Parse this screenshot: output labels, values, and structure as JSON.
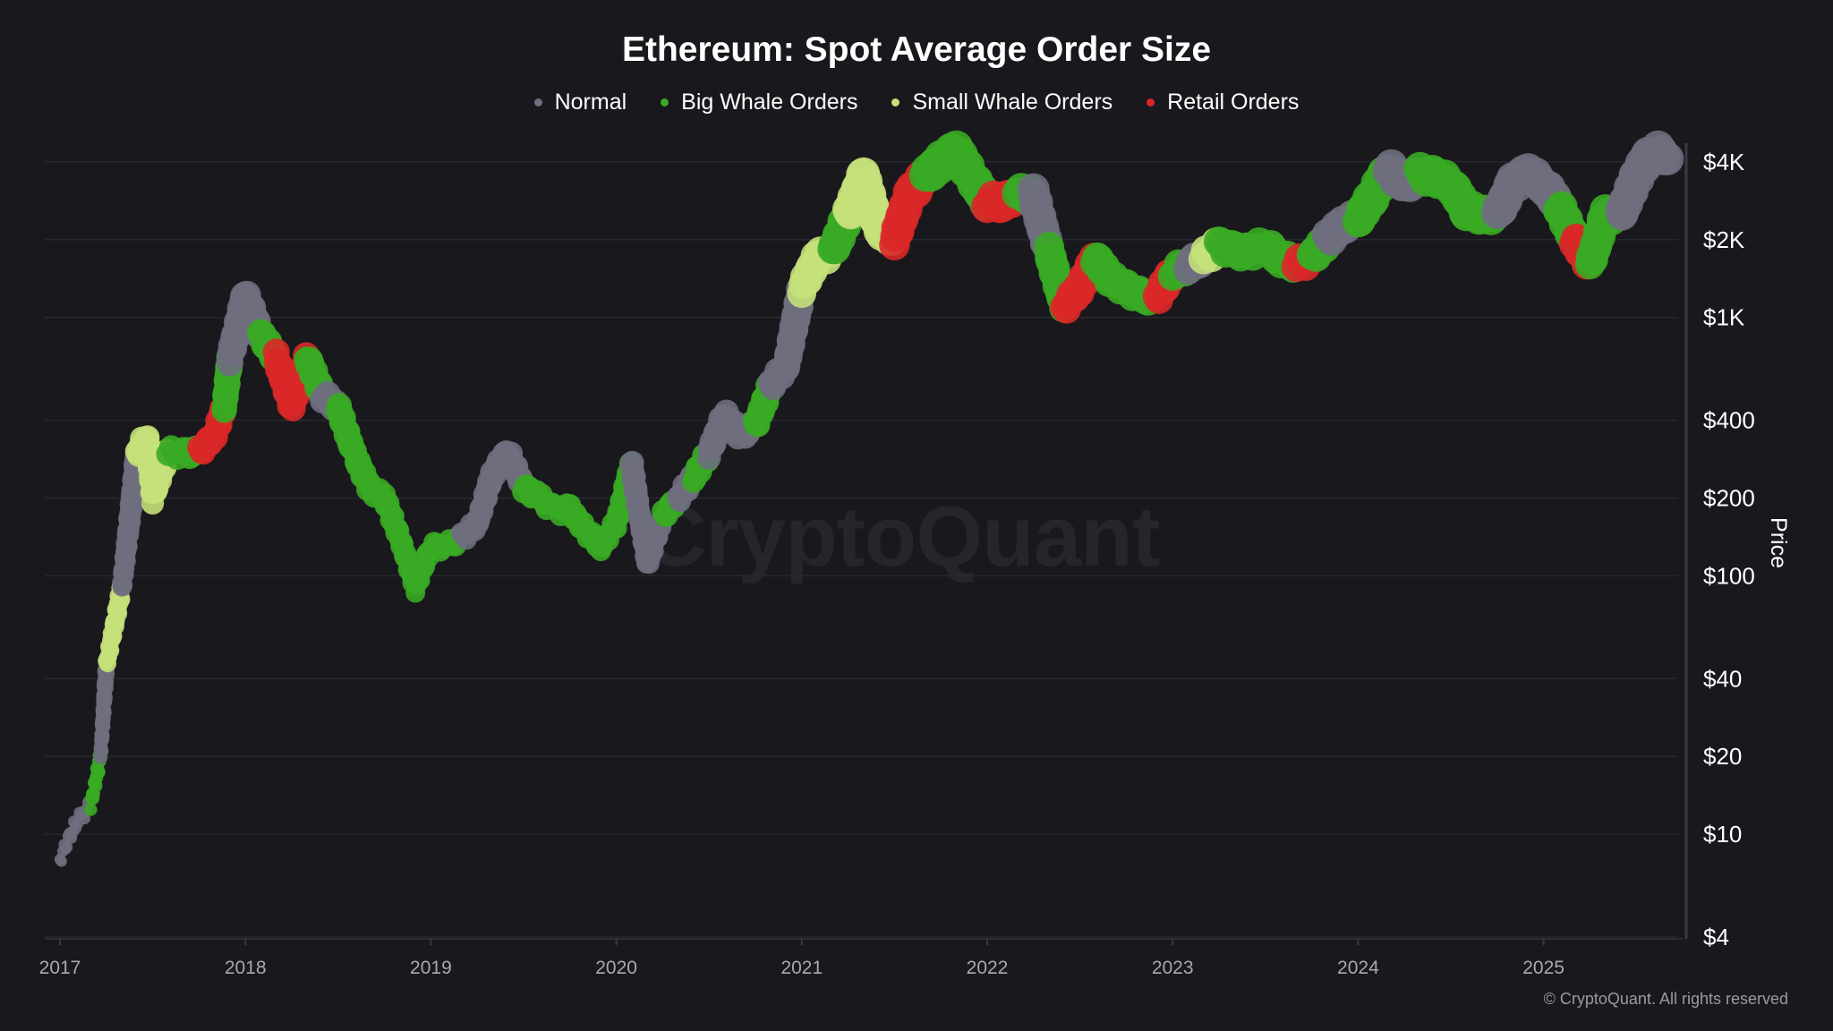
{
  "chart_data": {
    "type": "scatter",
    "title": "Ethereum: Spot Average Order Size",
    "ylabel": "Price",
    "yscale": "log",
    "ylim": [
      4,
      5000
    ],
    "y_ticks": [
      {
        "value": 4,
        "label": "$4"
      },
      {
        "value": 10,
        "label": "$10"
      },
      {
        "value": 20,
        "label": "$20"
      },
      {
        "value": 40,
        "label": "$40"
      },
      {
        "value": 100,
        "label": "$100"
      },
      {
        "value": 200,
        "label": "$200"
      },
      {
        "value": 400,
        "label": "$400"
      },
      {
        "value": 1000,
        "label": "$1K"
      },
      {
        "value": 2000,
        "label": "$2K"
      },
      {
        "value": 4000,
        "label": "$4K"
      }
    ],
    "x_ticks": [
      "2017",
      "2018",
      "2019",
      "2020",
      "2021",
      "2022",
      "2023",
      "2024",
      "2025"
    ],
    "grid": true,
    "legend_position": "top-center",
    "series": [
      {
        "key": "normal",
        "name": "Normal",
        "color": "#6e6e80"
      },
      {
        "key": "big",
        "name": "Big Whale Orders",
        "color": "#3aaa23"
      },
      {
        "key": "small",
        "name": "Small Whale Orders",
        "color": "#c5e07a"
      },
      {
        "key": "retail",
        "name": "Retail Orders",
        "color": "#d92828"
      }
    ],
    "points": [
      [
        "2017-01",
        8,
        "normal"
      ],
      [
        "2017-02",
        11,
        "normal"
      ],
      [
        "2017-03",
        13,
        "big"
      ],
      [
        "2017-03-20",
        20,
        "normal"
      ],
      [
        "2017-04",
        45,
        "small"
      ],
      [
        "2017-05",
        90,
        "normal"
      ],
      [
        "2017-06",
        300,
        "small"
      ],
      [
        "2017-06-20",
        350,
        "small"
      ],
      [
        "2017-07",
        200,
        "small"
      ],
      [
        "2017-08",
        300,
        "big"
      ],
      [
        "2017-09",
        300,
        "big"
      ],
      [
        "2017-10",
        300,
        "retail"
      ],
      [
        "2017-11",
        350,
        "retail"
      ],
      [
        "2017-11-20",
        450,
        "big"
      ],
      [
        "2017-12",
        700,
        "normal"
      ],
      [
        "2018-01",
        1200,
        "normal"
      ],
      [
        "2018-02",
        850,
        "big"
      ],
      [
        "2018-03",
        700,
        "retail"
      ],
      [
        "2018-04",
        450,
        "retail"
      ],
      [
        "2018-05",
        700,
        "big"
      ],
      [
        "2018-06",
        500,
        "normal"
      ],
      [
        "2018-07",
        450,
        "big"
      ],
      [
        "2018-08",
        300,
        "big"
      ],
      [
        "2018-09",
        220,
        "big"
      ],
      [
        "2018-10",
        200,
        "big"
      ],
      [
        "2018-11",
        140,
        "big"
      ],
      [
        "2018-12",
        90,
        "big"
      ],
      [
        "2019-01",
        130,
        "big"
      ],
      [
        "2019-02",
        130,
        "big"
      ],
      [
        "2019-03",
        140,
        "normal"
      ],
      [
        "2019-04",
        160,
        "normal"
      ],
      [
        "2019-05",
        250,
        "normal"
      ],
      [
        "2019-06",
        300,
        "normal"
      ],
      [
        "2019-07",
        220,
        "big"
      ],
      [
        "2019-08",
        200,
        "big"
      ],
      [
        "2019-09",
        180,
        "big"
      ],
      [
        "2019-10",
        180,
        "big"
      ],
      [
        "2019-11",
        150,
        "big"
      ],
      [
        "2019-12",
        130,
        "big"
      ],
      [
        "2020-01",
        160,
        "big"
      ],
      [
        "2020-02",
        270,
        "normal"
      ],
      [
        "2020-03",
        110,
        "normal"
      ],
      [
        "2020-04",
        170,
        "big"
      ],
      [
        "2020-05",
        200,
        "normal"
      ],
      [
        "2020-06",
        240,
        "big"
      ],
      [
        "2020-07",
        300,
        "normal"
      ],
      [
        "2020-08",
        420,
        "normal"
      ],
      [
        "2020-09",
        350,
        "normal"
      ],
      [
        "2020-10",
        380,
        "big"
      ],
      [
        "2020-11",
        550,
        "normal"
      ],
      [
        "2020-12",
        650,
        "normal"
      ],
      [
        "2021-01",
        1300,
        "small"
      ],
      [
        "2021-02",
        1700,
        "small"
      ],
      [
        "2021-03",
        1800,
        "big"
      ],
      [
        "2021-04",
        2500,
        "small"
      ],
      [
        "2021-05",
        3500,
        "small"
      ],
      [
        "2021-06",
        2200,
        "small"
      ],
      [
        "2021-07",
        2000,
        "retail"
      ],
      [
        "2021-08",
        3000,
        "retail"
      ],
      [
        "2021-09",
        3500,
        "big"
      ],
      [
        "2021-10",
        4000,
        "big"
      ],
      [
        "2021-11",
        4400,
        "big"
      ],
      [
        "2021-12",
        3500,
        "big"
      ],
      [
        "2022-01",
        2800,
        "retail"
      ],
      [
        "2022-02",
        2800,
        "retail"
      ],
      [
        "2022-03",
        3000,
        "big"
      ],
      [
        "2022-04",
        3000,
        "normal"
      ],
      [
        "2022-05",
        1800,
        "big"
      ],
      [
        "2022-06",
        1100,
        "retail"
      ],
      [
        "2022-07",
        1300,
        "retail"
      ],
      [
        "2022-08",
        1700,
        "big"
      ],
      [
        "2022-09",
        1400,
        "big"
      ],
      [
        "2022-10",
        1300,
        "big"
      ],
      [
        "2022-11",
        1200,
        "big"
      ],
      [
        "2022-12",
        1200,
        "retail"
      ],
      [
        "2023-01",
        1500,
        "big"
      ],
      [
        "2023-02",
        1600,
        "normal"
      ],
      [
        "2023-03",
        1700,
        "small"
      ],
      [
        "2023-04",
        1900,
        "big"
      ],
      [
        "2023-05",
        1800,
        "big"
      ],
      [
        "2023-06",
        1800,
        "big"
      ],
      [
        "2023-07",
        1900,
        "big"
      ],
      [
        "2023-08",
        1700,
        "big"
      ],
      [
        "2023-09",
        1600,
        "retail"
      ],
      [
        "2023-10",
        1700,
        "big"
      ],
      [
        "2023-11",
        2000,
        "normal"
      ],
      [
        "2023-12",
        2300,
        "normal"
      ],
      [
        "2024-01",
        2400,
        "big"
      ],
      [
        "2024-02",
        3000,
        "big"
      ],
      [
        "2024-03",
        3800,
        "normal"
      ],
      [
        "2024-04",
        3200,
        "normal"
      ],
      [
        "2024-05",
        3600,
        "big"
      ],
      [
        "2024-06",
        3500,
        "big"
      ],
      [
        "2024-07",
        3300,
        "big"
      ],
      [
        "2024-08",
        2600,
        "big"
      ],
      [
        "2024-09",
        2500,
        "big"
      ],
      [
        "2024-10",
        2500,
        "normal"
      ],
      [
        "2024-11",
        3300,
        "normal"
      ],
      [
        "2024-12",
        3600,
        "normal"
      ],
      [
        "2025-01",
        3300,
        "normal"
      ],
      [
        "2025-02",
        2700,
        "big"
      ],
      [
        "2025-03",
        2000,
        "retail"
      ],
      [
        "2025-04",
        1600,
        "big"
      ],
      [
        "2025-05",
        2500,
        "big"
      ],
      [
        "2025-06",
        2500,
        "normal"
      ],
      [
        "2025-07",
        3500,
        "normal"
      ],
      [
        "2025-08",
        4400,
        "normal"
      ],
      [
        "2025-09",
        4300,
        "normal"
      ]
    ]
  },
  "watermark": "CryptoQuant",
  "copyright": "© CryptoQuant. All rights reserved"
}
